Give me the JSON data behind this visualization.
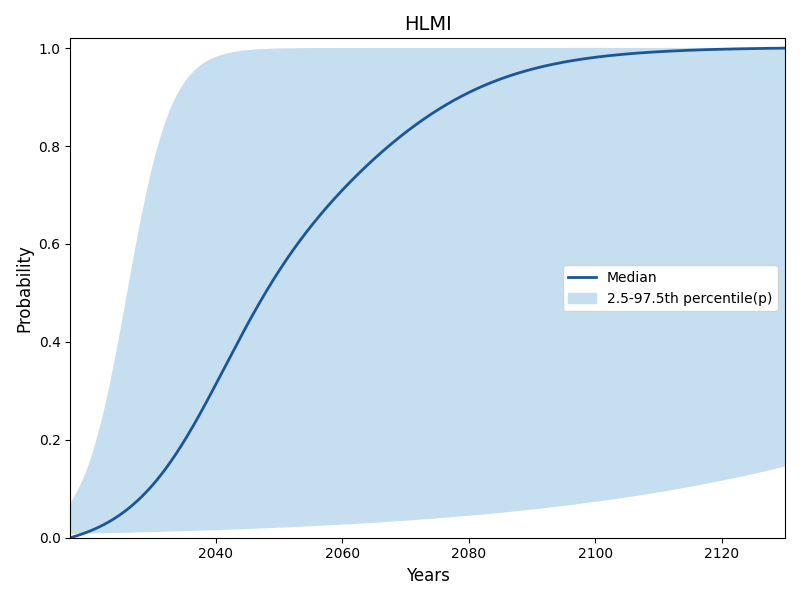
{
  "title": "HLMI",
  "xlabel": "Years",
  "ylabel": "Probability",
  "xlim": [
    2017,
    2130
  ],
  "ylim": [
    0.0,
    1.02
  ],
  "shade_color": "#c6dff0",
  "line_color": "#1a5799",
  "line_width": 2.0,
  "legend_labels": [
    "Median",
    "2.5-97.5th percentile(p)"
  ],
  "figsize": [
    8.0,
    6.0
  ],
  "dpi": 100,
  "xticks": [
    2040,
    2060,
    2080,
    2100,
    2120
  ],
  "yticks": [
    0.0,
    0.2,
    0.4,
    0.6,
    0.8,
    1.0
  ]
}
